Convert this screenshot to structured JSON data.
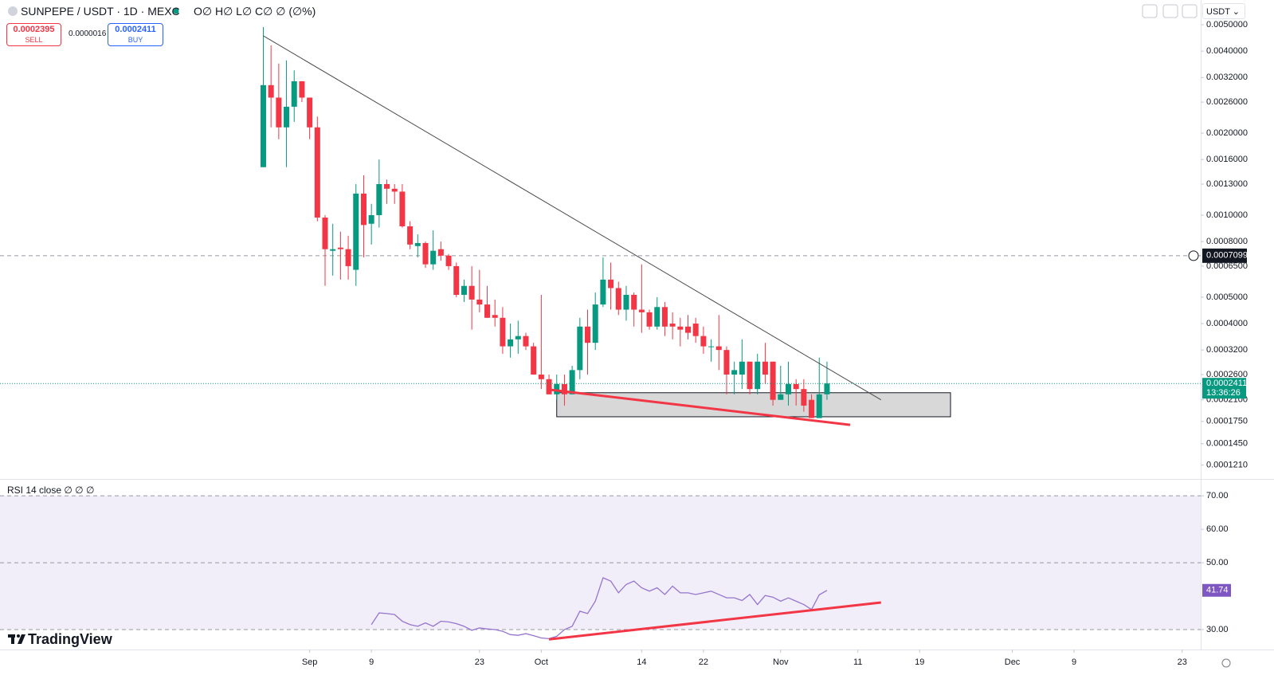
{
  "header": {
    "title": "SUNPEPE / USDT · 1D · MEXC",
    "ohlc": "O∅ H∅ L∅ C∅ ∅ (∅%)",
    "sell_price": 0.0002395,
    "sell_label": "SELL",
    "spread": 1.6e-06,
    "buy_price": 0.0002411,
    "buy_label": "BUY",
    "currency": "USDT",
    "logo": "TradingView",
    "countdown": "13:36:26"
  },
  "chart_data": [
    {
      "type": "candlestick",
      "log_scale": true,
      "up_color": "#089981",
      "down_color": "#f23645",
      "xlim": [
        -39.1,
        116.4
      ],
      "xticks": [
        {
          "value": 1,
          "label": "Sep"
        },
        {
          "value": 9,
          "label": "9"
        },
        {
          "value": 23,
          "label": "23"
        },
        {
          "value": 31,
          "label": "Oct"
        },
        {
          "value": 44,
          "label": "14"
        },
        {
          "value": 52,
          "label": "22"
        },
        {
          "value": 62,
          "label": "Nov"
        },
        {
          "value": 72,
          "label": "11"
        },
        {
          "value": 80,
          "label": "19"
        },
        {
          "value": 92,
          "label": "Dec"
        },
        {
          "value": 100,
          "label": "9"
        },
        {
          "value": 114,
          "label": "23"
        }
      ],
      "ylim": [
        0.0001076,
        0.00616
      ],
      "yticks": [
        {
          "value": 0.005,
          "label": "0.0050000"
        },
        {
          "value": 0.004,
          "label": "0.0040000"
        },
        {
          "value": 0.0032,
          "label": "0.0032000"
        },
        {
          "value": 0.0026,
          "label": "0.0026000"
        },
        {
          "value": 0.002,
          "label": "0.0020000"
        },
        {
          "value": 0.0016,
          "label": "0.0016000"
        },
        {
          "value": 0.0013,
          "label": "0.0013000"
        },
        {
          "value": 0.001,
          "label": "0.0010000"
        },
        {
          "value": 0.0008,
          "label": "0.0008000"
        },
        {
          "value": 0.00065,
          "label": "0.0006500"
        },
        {
          "value": 0.0005,
          "label": "0.0005000"
        },
        {
          "value": 0.0004,
          "label": "0.0004000"
        },
        {
          "value": 0.00032,
          "label": "0.0003200"
        },
        {
          "value": 0.00026,
          "label": "0.0002600"
        },
        {
          "value": 0.00021,
          "label": "0.0002100"
        },
        {
          "value": 0.000175,
          "label": "0.0001750"
        },
        {
          "value": 0.000145,
          "label": "0.0001450"
        },
        {
          "value": 0.000121,
          "label": "0.0001210"
        }
      ],
      "x": [
        -5,
        -4,
        -3,
        -2,
        -1,
        0,
        1,
        2,
        3,
        4,
        5,
        6,
        7,
        8,
        9,
        10,
        11,
        12,
        13,
        14,
        15,
        16,
        17,
        18,
        19,
        20,
        21,
        22,
        23,
        24,
        25,
        26,
        27,
        28,
        29,
        30,
        31,
        32,
        33,
        34,
        35,
        36,
        37,
        38,
        39,
        40,
        41,
        42,
        43,
        44,
        45,
        46,
        47,
        48,
        49,
        50,
        51,
        52,
        53,
        54,
        55,
        56,
        57,
        58,
        59,
        60,
        61,
        62,
        63,
        64,
        65,
        66,
        67,
        68
      ],
      "open": [
        0.0015,
        0.003,
        0.0027,
        0.0021,
        0.0025,
        0.0031,
        0.0027,
        0.0021,
        0.00098,
        0.00074,
        0.00076,
        0.00075,
        0.00063,
        0.0012,
        0.00093,
        0.001,
        0.0013,
        0.00125,
        0.00122,
        0.00091,
        0.00077,
        0.00079,
        0.00066,
        0.00075,
        0.00071,
        0.00065,
        0.00051,
        0.00055,
        0.00049,
        0.00047,
        0.00043,
        0.00042,
        0.00033,
        0.00035,
        0.00036,
        0.00033,
        0.00026,
        0.00025,
        0.00022,
        0.00024,
        0.00022,
        0.00027,
        0.00039,
        0.00034,
        0.00047,
        0.00058,
        0.00054,
        0.00045,
        0.00051,
        0.00045,
        0.00044,
        0.00039,
        0.00046,
        0.0004,
        0.00039,
        0.00039,
        0.0004,
        0.00036,
        0.00033,
        0.00033,
        0.00032,
        0.00026,
        0.00026,
        0.00029,
        0.00023,
        0.00029,
        0.00029,
        0.00021,
        0.00022,
        0.00024,
        0.00023,
        0.00021,
        0.00018,
        0.00022
      ],
      "high": [
        0.0049,
        0.0042,
        0.0036,
        0.0037,
        0.0034,
        0.0031,
        0.0027,
        0.0023,
        0.001,
        0.00093,
        0.00087,
        0.00084,
        0.0013,
        0.0014,
        0.0011,
        0.0016,
        0.00135,
        0.0013,
        0.0013,
        0.00095,
        0.00085,
        0.0008,
        0.00088,
        0.0008,
        0.00072,
        0.00067,
        0.00058,
        0.00065,
        0.00063,
        0.00055,
        0.00049,
        0.00046,
        0.0004,
        0.00041,
        0.00037,
        0.00034,
        0.00051,
        0.00026,
        0.00026,
        0.00026,
        0.00028,
        0.00042,
        0.00045,
        0.00052,
        0.0007,
        0.00067,
        0.00057,
        0.00055,
        0.00052,
        0.00066,
        0.00045,
        0.0005,
        0.00048,
        0.00044,
        0.00042,
        0.00043,
        0.00042,
        0.00039,
        0.00035,
        0.00043,
        0.00033,
        0.00029,
        0.00035,
        0.00029,
        0.00031,
        0.00034,
        0.00029,
        0.00028,
        0.00029,
        0.00025,
        0.00025,
        0.00022,
        0.0003,
        0.00029
      ],
      "low": [
        0.0015,
        0.0021,
        0.0019,
        0.0015,
        0.0022,
        0.0026,
        0.0019,
        0.00095,
        0.00055,
        0.0006,
        0.00058,
        0.00058,
        0.00055,
        0.0007,
        0.00078,
        0.0009,
        0.0011,
        0.0011,
        0.0009,
        0.00075,
        0.0007,
        0.00064,
        0.00063,
        0.00068,
        0.00063,
        0.0005,
        0.00048,
        0.00038,
        0.00044,
        0.00042,
        0.00039,
        0.00031,
        0.0003,
        0.00031,
        0.00032,
        0.00026,
        0.00023,
        0.00022,
        0.00021,
        0.0002,
        0.00022,
        0.00025,
        0.00026,
        0.00032,
        0.00046,
        0.00045,
        0.00043,
        0.00041,
        0.00039,
        0.00037,
        0.00038,
        0.00038,
        0.00036,
        0.00035,
        0.00033,
        0.00035,
        0.00034,
        0.00031,
        0.00029,
        0.00027,
        0.00022,
        0.00022,
        0.00023,
        0.00022,
        0.00022,
        0.00024,
        0.0002,
        0.00021,
        0.0002,
        0.0002,
        0.00019,
        0.00018,
        0.00018,
        0.00021
      ],
      "close": [
        0.003,
        0.0027,
        0.0021,
        0.0025,
        0.0031,
        0.0027,
        0.0021,
        0.00098,
        0.00075,
        0.00075,
        0.00075,
        0.00065,
        0.0012,
        0.00092,
        0.001,
        0.0013,
        0.00125,
        0.00122,
        0.00091,
        0.00078,
        0.00079,
        0.00066,
        0.00074,
        0.00071,
        0.00065,
        0.00051,
        0.00055,
        0.00049,
        0.00047,
        0.00042,
        0.00042,
        0.00033,
        0.00035,
        0.00036,
        0.00033,
        0.00026,
        0.00025,
        0.00022,
        0.00024,
        0.00022,
        0.00027,
        0.00039,
        0.00034,
        0.00047,
        0.00058,
        0.00054,
        0.00045,
        0.00051,
        0.00045,
        0.00044,
        0.00039,
        0.00046,
        0.00039,
        0.00039,
        0.00038,
        0.00037,
        0.00036,
        0.00033,
        0.00033,
        0.00032,
        0.00026,
        0.00027,
        0.00029,
        0.00023,
        0.00029,
        0.00026,
        0.00021,
        0.00022,
        0.00024,
        0.00023,
        0.0002,
        0.00018,
        0.00022,
        0.0002411
      ],
      "last_price": 0.0002411,
      "last_color": "#089981",
      "crosshair_price": 0.0007099,
      "trend_lines": [
        {
          "x": [
            -5,
            75
          ],
          "y": [
            0.00455,
            0.00021
          ],
          "color": "#4a4a4a",
          "width": 1
        },
        {
          "x": [
            32,
            71
          ],
          "y": [
            0.000229,
            0.00017
          ],
          "color": "#f23645",
          "width": 3
        }
      ],
      "zones": [
        {
          "x": [
            33,
            84
          ],
          "y": [
            0.000223,
            0.000182
          ],
          "color": "#d1d1d1"
        }
      ]
    },
    {
      "type": "line",
      "title": "RSI 14 close ∅ ∅ ∅",
      "color": "#9575cd",
      "band_color": "#7e57c2",
      "xlim": [
        -39.1,
        116.4
      ],
      "ylim": [
        24.05,
        74.8
      ],
      "yticks": [
        {
          "value": 70,
          "label": "70.00"
        },
        {
          "value": 60,
          "label": "60.00"
        },
        {
          "value": 50,
          "label": "50.00"
        },
        {
          "value": 30,
          "label": "30.00"
        }
      ],
      "bands": [
        70,
        50,
        30
      ],
      "x": [
        9,
        10,
        11,
        12,
        13,
        14,
        15,
        16,
        17,
        18,
        19,
        20,
        21,
        22,
        23,
        24,
        25,
        26,
        27,
        28,
        29,
        30,
        31,
        32,
        33,
        34,
        35,
        36,
        37,
        38,
        39,
        40,
        41,
        42,
        43,
        44,
        45,
        46,
        47,
        48,
        49,
        50,
        51,
        52,
        53,
        54,
        55,
        56,
        57,
        58,
        59,
        60,
        61,
        62,
        63,
        64,
        65,
        66,
        67,
        68
      ],
      "values": [
        31.5,
        35,
        34.8,
        34.5,
        32.5,
        31.5,
        31,
        32,
        31,
        32.5,
        32.3,
        31.8,
        31,
        29.8,
        30.5,
        30.2,
        30,
        29.5,
        28.5,
        28.3,
        28.8,
        28.2,
        27.5,
        27.3,
        28,
        30,
        31,
        35.5,
        34.8,
        38.5,
        45.5,
        44.5,
        41,
        43.5,
        44.5,
        42.5,
        41.5,
        42.5,
        40.5,
        43,
        41,
        41,
        40.5,
        41,
        41.5,
        40.5,
        39.5,
        39.5,
        38.7,
        40.5,
        37.5,
        40.2,
        39.7,
        38.5,
        39.5,
        38.5,
        37.5,
        36,
        40.4,
        41.74
      ],
      "trend_lines": [
        {
          "x": [
            32,
            75
          ],
          "y": [
            27.1,
            38.1
          ],
          "color": "#f23645",
          "width": 3
        }
      ]
    }
  ]
}
